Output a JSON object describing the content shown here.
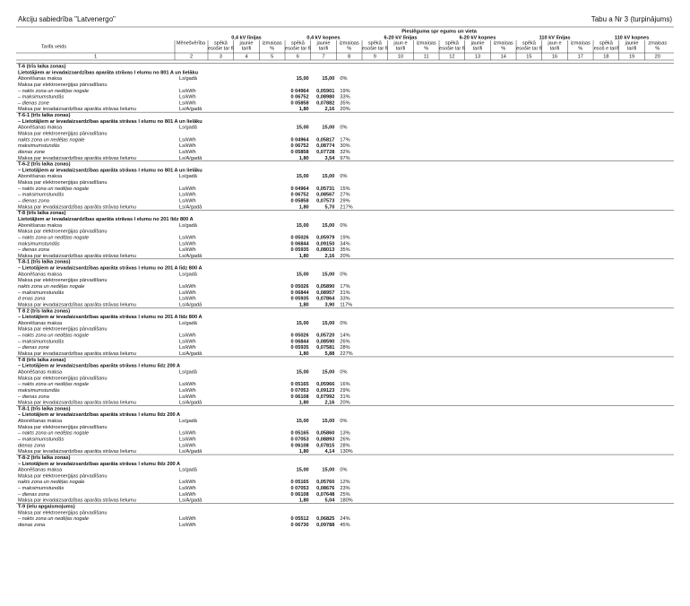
{
  "header": {
    "company": "Akciju sabiedrība \"Latvenergo\"",
    "table_ref": "Tabu a Nr 3  (turpinājums)"
  },
  "table": {
    "caption": "Pieslēguma spr egums un vieta",
    "type_label": "Tarifa veids",
    "unit_label": "Mēnešvērība",
    "groups": [
      {
        "label": "0,4 kV līnijas",
        "sub": [
          [
            "spēkā",
            "esošie tar fi"
          ],
          [
            "jaunie",
            "tarifi"
          ],
          [
            "izmaiņas",
            "%"
          ]
        ]
      },
      {
        "label": "0,4 kV kopnes",
        "sub": [
          [
            "spēkā",
            "esošie tar fi"
          ],
          [
            "jaunie",
            "tarifi"
          ],
          [
            "izmaiņas",
            "%"
          ]
        ]
      },
      {
        "label": "6-20 kV līnijas",
        "sub": [
          [
            "spēkā",
            "esošie tar fi"
          ],
          [
            "jaun e",
            "tarifi"
          ],
          [
            "izmaiņas",
            "%"
          ]
        ]
      },
      {
        "label": "6-20 kV kopnes",
        "sub": [
          [
            "spēkā",
            "esošie tar fi"
          ],
          [
            "jaunie",
            "tarifi"
          ],
          [
            "izmaiņas",
            "%"
          ]
        ]
      },
      {
        "label": "110 kV līnijas",
        "sub": [
          [
            "spēkā",
            "esošie tar fi"
          ],
          [
            "jaun e",
            "tarifi"
          ],
          [
            "izmaiņas",
            "%"
          ]
        ]
      },
      {
        "label": "110 kV kopnes",
        "sub": [
          [
            "spēkā",
            "esoš e tarif"
          ],
          [
            "jaunie",
            "tarifi"
          ],
          [
            "zmaiņas",
            "%"
          ]
        ]
      }
    ],
    "column_numbers": [
      "1",
      "2",
      "3",
      "4",
      "5",
      "6",
      "7",
      "8",
      "9",
      "10",
      "11",
      "12",
      "13",
      "14",
      "15",
      "16",
      "17",
      "18",
      "19",
      "20"
    ],
    "sections": [
      {
        "title": "T-6 (trīs laika zonas)",
        "subtitle": " Lietotājiem ar ievadaizsardzības aparāta strāvas l elumu no 801 A un lielāku",
        "rows": [
          [
            "Abonēšanas maksa",
            "Ls/gadā",
            "15,00",
            "15,00",
            "0%"
          ],
          [
            "Maksa par elektroenerģijas pārvadīšanu"
          ],
          [
            "– nakts zona un nedēļas nogale",
            "Ls/kWh",
            "0 04964",
            "0,05901",
            "19%"
          ],
          [
            "– maksimumstundās",
            "Ls/kWh",
            "0 06752",
            "0,08980",
            "33%"
          ],
          [
            "– dienas zone",
            "Ls/kWh",
            "0 05858",
            "0,07882",
            "35%"
          ],
          [
            "Maksa par ievadaizsardzības aparāta strāvas lielumu",
            "Ls/A/gadā",
            "1,80",
            "2,16",
            "20%"
          ]
        ]
      },
      {
        "title": "T-6-1 (trīs laika zonas)",
        "subtitle": "– Lietotājiem ar ievadaizsardzības aparāta strāvas l elumu no 801 A un lielāku",
        "rows": [
          [
            "Abonēšanas maksa",
            "Ls/gadā",
            "15,00",
            "15,00",
            "0%"
          ],
          [
            "Maksa par elektroenerģijas pārvadīšanu"
          ],
          [
            "nakts zona un nedēļas nogale",
            "Ls/kWh",
            "0 04964",
            "0,05817",
            "17%"
          ],
          [
            "maksimumstundās",
            "Ls/kWh",
            "0 06752",
            "0,08774",
            "30%"
          ],
          [
            "dienas zone",
            "Ls/kWh",
            "0 05858",
            "0,07728",
            "32%"
          ],
          [
            "Maksa par ievadaizsardzības aparāta strāvas lielumu",
            "Ls/A/gadā",
            "1,80",
            "3,54",
            "97%"
          ]
        ]
      },
      {
        "title": "T-6-2 (trīs laika zonas)",
        "subtitle": "– Lietotājiem ar ievadaizsardzības aparāta strāvas l elumu no 801 A un lielāku",
        "rows": [
          [
            "Abonēšanas maksa",
            "Ls/gadā",
            "15,00",
            "15,00",
            "0%"
          ],
          [
            "Maksa par elektroenerģijas pārvadīšanu"
          ],
          [
            "– nakts zona un nedēļas nogale",
            "Ls/kWh",
            "0 04964",
            "0,05731",
            "15%"
          ],
          [
            "– maksimumstundās",
            "Ls/kWh",
            "0 06752",
            "0,08567",
            "27%"
          ],
          [
            "– dienas zona",
            "Ls/kWh",
            "0 05858",
            "0,07573",
            "29%"
          ],
          [
            "Maksa par ievadaizsardzības aparāta strāvas lielumu",
            "Ls/A/gadā",
            "1,80",
            "5,70",
            "217%"
          ]
        ]
      },
      {
        "title": "T-8 (trīs laika zonas)",
        "subtitle": " Lietotājiem ar ievadaizsardzības aparāta strāvas l elumu no 201 līdz 800 A",
        "rows": [
          [
            "Abonēšanas maksa",
            "Ls/gadā",
            "15,00",
            "15,00",
            "0%"
          ],
          [
            "Maksa par elektroenerģijas pārvadīšanu"
          ],
          [
            "– nakts zona un nedēļas nogale",
            "Ls/kWh",
            "0 05026",
            "0,05979",
            "19%"
          ],
          [
            "maksimumstundās",
            "Ls/kWh",
            "0 06844",
            "0,09150",
            "34%"
          ],
          [
            "– dienas zona",
            "Ls/kWh",
            "0 05935",
            "0,08013",
            "35%"
          ],
          [
            "Maksa par ievadaizsardzības aparāta strāvas lielumu",
            "Ls/A/gadā",
            "1,80",
            "2,16",
            "20%"
          ]
        ]
      },
      {
        "title": "T-8-1 (trīs laika zonas)",
        "subtitle": "– Lietotājiem ar ievadaizsardzības aparāta strāvas l elumu no 201 A līdz 800 A",
        "rows": [
          [
            "Abonēšanas maksa",
            "Ls/gadā",
            "15,00",
            "15,00",
            "0%"
          ],
          [
            "Maksa par elektroenerģijas pārvadīšanu"
          ],
          [
            "nakts zona un nedēļas nogale",
            "Ls/kWh",
            "0 05026",
            "0,05890",
            "17%"
          ],
          [
            "– maksimumstundās",
            "Ls/kWh",
            "0 06844",
            "0,08957",
            "31%"
          ],
          [
            "d enas zona",
            "Ls/kWh",
            "0 05935",
            "0,07864",
            "33%"
          ],
          [
            "Maksa par ievadaizsardzības aparāta strāvas lielumu",
            "Ls/A/gadā",
            "1,80",
            "3,90",
            "117%"
          ]
        ]
      },
      {
        "title": "T 8 2 (trīs laika zonas)",
        "subtitle": "– Lietotājiem ar ievadaizsardzības aparāta strāvas l elumu no 201 A  līdz 800 A",
        "rows": [
          [
            "Abonēšanas maksa",
            "Ls/gadā",
            "15,00",
            "15,00",
            "0%"
          ],
          [
            "Maksa par elektroenerģijas pārvadīšanu"
          ],
          [
            "– nakts zona un nedēļas nogale",
            "Ls/kWh",
            "0 05026",
            "0,05720",
            "14%"
          ],
          [
            "– maksimumstundās",
            "Ls/kWh",
            "0 06844",
            "0,08590",
            "26%"
          ],
          [
            "– dienas zone",
            "Ls/kWh",
            "0 05935",
            "0,07581",
            "28%"
          ],
          [
            "Maksa par ievadaizsardzības aparāta strāvas lielumu",
            "Ls/A/gadā",
            "1,80",
            "5,88",
            "227%"
          ]
        ]
      },
      {
        "title": "T-8 (trīs laika zonas)",
        "subtitle": "– Lietotājiem ar ievadaizsardzības aparāta strāvas l elumu līdz 200 A",
        "rows": [
          [
            "Abonēšanas maksa",
            "Ls/gadā",
            "15,00",
            "15,00",
            "0%"
          ],
          [
            "Maksa par elektroenerģijas pārvadīšanu"
          ],
          [
            "– nakts zona un nedēļas nogale",
            "Ls/kWh",
            "0 05165",
            "0,05966",
            "16%"
          ],
          [
            "maksimumstundās",
            "Ls/kWh",
            "0 07053",
            "0,09123",
            "29%"
          ],
          [
            "– dienas zona",
            "Ls/kWh",
            "0 06108",
            "0,07992",
            "31%"
          ],
          [
            "Maksa par ievadaizsardzības aparāta strāvas lielumu",
            "Ls/A/gadā",
            "1,80",
            "2,16",
            "20%"
          ]
        ]
      },
      {
        "title": "T-8-1 (trīs laika zonas)",
        "subtitle": "– Lietotājiem ar ievadaizsardzības aparāta strāvas l elumu līdz 200 A",
        "rows": [
          [
            "Abonēšanas maksa",
            "Ls/gadā",
            "15,00",
            "15,00",
            "0%"
          ],
          [
            "Maksa par elektroenerģijas pārvadīšanu"
          ],
          [
            "– nakts zona un nedēļas nogale",
            "Ls/kWh",
            "0 05165",
            "0,05860",
            "13%"
          ],
          [
            "– maksimumstundās",
            "Ls/kWh",
            "0 07053",
            "0,08893",
            "26%"
          ],
          [
            "dienas zona",
            "Ls/kWh",
            "0 06108",
            "0,07815",
            "28%"
          ],
          [
            "Maksa par ievadaizsardzības aparāta strāvas lielumu",
            "Ls/A/gadā",
            "1,80",
            "4,14",
            "130%"
          ]
        ]
      },
      {
        "title": "T-8-2 (trīs laika zonas)",
        "subtitle": "– Lietotājiem ar ievadaizsardzības aparāta strāvas l elumu līdz 200 A",
        "rows": [
          [
            "Abonēšanas maksa",
            "Ls/gadā",
            "15,00",
            "15,00",
            "0%"
          ],
          [
            "Maksa par elektroenerģijas pārvadīšanu"
          ],
          [
            "nakts zona un nedēļas nogale",
            "Ls/kWh",
            "0 05165",
            "0,05760",
            "12%"
          ],
          [
            "– maksimumstundās",
            "Ls/kWh",
            "0 07053",
            "0,08676",
            "23%"
          ],
          [
            "– dienas zona",
            "Ls/kWh",
            "0 06108",
            "0,07648",
            "25%"
          ],
          [
            "Maksa par ievadaizsardzības aparāta strāvas lielumu",
            "Ls/A/gadā",
            "1,80",
            "5,04",
            "180%"
          ]
        ]
      },
      {
        "title": "T-9 (ielu apgaismojums)",
        "rows": [
          [
            "Maksa par elektroenerģijas pārvadīšanu"
          ],
          [
            "– nakts zona un nedēļas nogale",
            "Ls/kWh",
            "0 05512",
            "0,06825",
            "24%"
          ],
          [
            "dienas zona",
            "Ls/kWh",
            "0 06730",
            "0,09788",
            "45%"
          ]
        ]
      }
    ]
  }
}
